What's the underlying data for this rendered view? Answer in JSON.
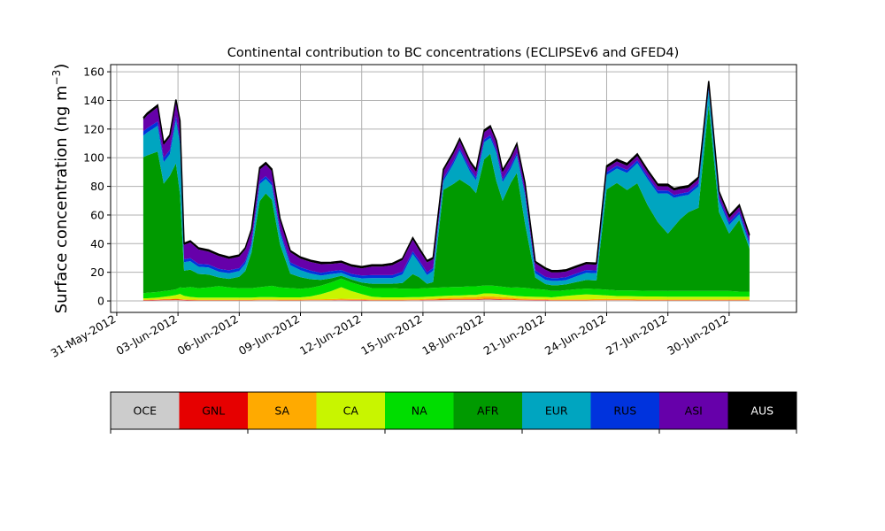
{
  "chart_data": {
    "type": "area",
    "stacked": true,
    "title": "Continental contribution to BC concentrations (ECLIPSEv6 and GFED4)",
    "ylabel": "Surface concentration (ng m",
    "ylabel_unit_exp": "−3",
    "ylabel_close": ")",
    "xlabel": "",
    "ylim": [
      -8,
      165
    ],
    "yticks": [
      0,
      20,
      40,
      60,
      80,
      100,
      120,
      140,
      160
    ],
    "xlim_days": [
      -0.3,
      33.3
    ],
    "x_origin_date": "2012-05-31",
    "xticks": [
      {
        "day": 0,
        "label": "31-May-2012"
      },
      {
        "day": 3,
        "label": "03-Jun-2012"
      },
      {
        "day": 6,
        "label": "06-Jun-2012"
      },
      {
        "day": 9,
        "label": "09-Jun-2012"
      },
      {
        "day": 12,
        "label": "12-Jun-2012"
      },
      {
        "day": 15,
        "label": "15-Jun-2012"
      },
      {
        "day": 18,
        "label": "18-Jun-2012"
      },
      {
        "day": 21,
        "label": "21-Jun-2012"
      },
      {
        "day": 24,
        "label": "24-Jun-2012"
      },
      {
        "day": 27,
        "label": "27-Jun-2012"
      },
      {
        "day": 30,
        "label": "30-Jun-2012"
      }
    ],
    "grid": true,
    "legend_placement": "below",
    "x": [
      1.3,
      1.5,
      2.0,
      2.3,
      2.6,
      2.9,
      3.1,
      3.3,
      3.6,
      4.0,
      4.5,
      5.0,
      5.5,
      6.0,
      6.3,
      6.6,
      7.0,
      7.3,
      7.6,
      8.0,
      8.5,
      9.0,
      9.5,
      10.0,
      10.5,
      11.0,
      11.5,
      12.0,
      12.5,
      13.0,
      13.5,
      14.0,
      14.5,
      14.8,
      15.2,
      15.5,
      16.0,
      16.5,
      16.8,
      17.3,
      17.6,
      18.0,
      18.3,
      18.6,
      18.9,
      19.3,
      19.6,
      20.0,
      20.5,
      21.0,
      21.3,
      21.6,
      22.0,
      22.5,
      23.0,
      23.5,
      24.0,
      24.5,
      25.0,
      25.5,
      26.0,
      26.5,
      27.0,
      27.3,
      27.6,
      28.0,
      28.5,
      29.0,
      29.5,
      30.0,
      30.5,
      31.0
    ],
    "series": [
      {
        "name": "OCE",
        "color": "#cccccc",
        "values": [
          0.3,
          0.3,
          0.4,
          0.5,
          0.5,
          0.6,
          0.5,
          0.4,
          0.3,
          0.3,
          0.3,
          0.3,
          0.3,
          0.3,
          0.3,
          0.3,
          0.4,
          0.4,
          0.4,
          0.3,
          0.3,
          0.3,
          0.4,
          0.4,
          0.4,
          0.5,
          0.4,
          0.4,
          0.3,
          0.3,
          0.3,
          0.3,
          0.4,
          0.4,
          0.5,
          0.5,
          0.6,
          0.7,
          0.7,
          0.8,
          0.8,
          1.0,
          1.0,
          0.9,
          0.8,
          0.7,
          0.6,
          0.5,
          0.4,
          0.4,
          0.3,
          0.3,
          0.3,
          0.3,
          0.3,
          0.4,
          0.4,
          0.4,
          0.4,
          0.3,
          0.3,
          0.3,
          0.3,
          0.3,
          0.3,
          0.3,
          0.3,
          0.3,
          0.3,
          0.3,
          0.3,
          0.3
        ]
      },
      {
        "name": "GNL",
        "color": "#e60000",
        "values": [
          0.3,
          0.3,
          0.3,
          0.4,
          0.4,
          0.4,
          0.4,
          0.3,
          0.3,
          0.2,
          0.2,
          0.2,
          0.2,
          0.2,
          0.2,
          0.2,
          0.2,
          0.2,
          0.2,
          0.2,
          0.2,
          0.2,
          0.2,
          0.2,
          0.2,
          0.3,
          0.3,
          0.3,
          0.2,
          0.2,
          0.2,
          0.2,
          0.2,
          0.2,
          0.3,
          0.3,
          0.4,
          0.4,
          0.4,
          0.4,
          0.4,
          0.5,
          0.5,
          0.5,
          0.4,
          0.4,
          0.3,
          0.3,
          0.3,
          0.3,
          0.2,
          0.2,
          0.2,
          0.2,
          0.2,
          0.2,
          0.2,
          0.2,
          0.2,
          0.2,
          0.2,
          0.2,
          0.2,
          0.2,
          0.2,
          0.2,
          0.2,
          0.2,
          0.2,
          0.2,
          0.2,
          0.2
        ]
      },
      {
        "name": "SA",
        "color": "#ffaa00",
        "values": [
          0.3,
          0.3,
          0.4,
          0.5,
          0.5,
          0.6,
          0.5,
          0.4,
          0.4,
          0.4,
          0.4,
          0.4,
          0.4,
          0.4,
          0.4,
          0.4,
          0.5,
          0.5,
          0.5,
          0.5,
          0.5,
          0.5,
          0.6,
          0.6,
          0.7,
          0.8,
          0.7,
          0.6,
          0.5,
          0.5,
          0.5,
          0.5,
          0.6,
          0.6,
          0.7,
          0.8,
          1.0,
          1.2,
          1.2,
          1.5,
          1.5,
          1.8,
          1.8,
          1.6,
          1.4,
          1.2,
          1.0,
          0.8,
          0.7,
          0.6,
          0.5,
          0.5,
          0.5,
          0.6,
          0.6,
          0.7,
          0.8,
          0.8,
          0.8,
          0.7,
          0.6,
          0.6,
          0.5,
          0.5,
          0.5,
          0.5,
          0.5,
          0.5,
          0.5,
          0.5,
          0.5,
          0.5
        ]
      },
      {
        "name": "CA",
        "color": "#c8f500",
        "values": [
          1.0,
          1.0,
          1.2,
          1.5,
          2.0,
          2.5,
          3.5,
          2.5,
          1.8,
          1.5,
          1.5,
          1.5,
          1.5,
          1.5,
          1.5,
          1.5,
          1.5,
          1.5,
          1.5,
          1.5,
          1.5,
          1.5,
          2.0,
          3.5,
          5.5,
          8.0,
          5.5,
          3.5,
          2.0,
          1.5,
          1.5,
          1.5,
          1.5,
          1.5,
          1.5,
          1.5,
          1.5,
          1.5,
          1.5,
          1.5,
          1.5,
          2.0,
          2.0,
          2.0,
          1.8,
          1.5,
          1.5,
          1.5,
          1.5,
          1.5,
          1.5,
          2.0,
          2.5,
          3.0,
          3.5,
          3.0,
          2.5,
          2.0,
          2.0,
          2.0,
          2.0,
          2.0,
          2.0,
          2.0,
          2.0,
          2.0,
          2.0,
          2.0,
          2.0,
          2.0,
          2.0,
          2.0
        ]
      },
      {
        "name": "NA",
        "color": "#00dd00",
        "values": [
          3.5,
          3.8,
          4.0,
          4.0,
          4.0,
          4.0,
          4.5,
          5.5,
          7.0,
          6.5,
          7.0,
          8.0,
          7.0,
          6.5,
          6.5,
          6.5,
          7.0,
          7.5,
          8.0,
          7.0,
          6.5,
          6.0,
          6.0,
          6.0,
          6.0,
          6.0,
          6.0,
          6.0,
          6.0,
          6.5,
          6.5,
          6.0,
          6.0,
          6.0,
          6.0,
          6.0,
          6.0,
          6.0,
          6.0,
          6.0,
          6.0,
          5.5,
          5.5,
          5.5,
          5.5,
          5.5,
          6.0,
          6.0,
          5.5,
          5.0,
          4.5,
          4.0,
          4.0,
          4.0,
          4.0,
          4.0,
          4.0,
          4.0,
          4.0,
          4.0,
          4.0,
          4.0,
          4.0,
          4.0,
          4.0,
          4.0,
          4.0,
          4.0,
          4.0,
          4.0,
          3.5,
          3.5
        ]
      },
      {
        "name": "AFR",
        "color": "#009a00",
        "values": [
          95,
          96,
          98,
          75,
          80,
          88,
          65,
          12,
          12,
          10,
          9,
          6,
          6,
          8,
          12,
          25,
          60,
          65,
          60,
          30,
          10,
          8,
          6,
          4,
          3,
          2,
          2,
          2,
          3,
          3,
          3,
          4,
          10,
          8,
          3,
          4,
          68,
          72,
          75,
          70,
          65,
          88,
          92,
          73,
          60,
          73,
          80,
          45,
          8,
          4,
          4,
          4,
          4,
          5,
          6,
          6,
          70,
          75,
          70,
          75,
          60,
          48,
          40,
          45,
          50,
          55,
          58,
          130,
          55,
          40,
          50,
          30
        ]
      },
      {
        "name": "EUR",
        "color": "#00a5c0",
        "values": [
          15,
          16,
          18,
          15,
          15,
          30,
          35,
          6,
          6,
          5,
          5,
          4,
          4,
          4,
          5,
          5,
          12,
          10,
          10,
          8,
          6,
          5,
          4,
          3,
          3,
          2,
          2,
          3,
          4,
          4,
          4,
          6,
          14,
          10,
          6,
          8,
          6,
          14,
          20,
          10,
          9,
          12,
          11,
          20,
          13,
          10,
          12,
          20,
          3,
          3,
          3,
          3,
          3,
          4,
          5,
          5,
          10,
          10,
          12,
          14,
          18,
          20,
          28,
          20,
          16,
          12,
          15,
          10,
          8,
          6,
          4,
          3
        ]
      },
      {
        "name": "RUS",
        "color": "#0033dd",
        "values": [
          3,
          3,
          3,
          3,
          3,
          3,
          3,
          2,
          2,
          2,
          2,
          2,
          2,
          2,
          2,
          2,
          2,
          2,
          2,
          2,
          2,
          2,
          2,
          2,
          2,
          2,
          2,
          2,
          2,
          2,
          2,
          2,
          2,
          2,
          2,
          2,
          2,
          2,
          2,
          2,
          2,
          2,
          2,
          2,
          2,
          2,
          2,
          2,
          2,
          2,
          2,
          2,
          2,
          2,
          2,
          2,
          2,
          2,
          2,
          2,
          2,
          2,
          2,
          2,
          2,
          2,
          2,
          2,
          2,
          2,
          2,
          2
        ]
      },
      {
        "name": "ASI",
        "color": "#6600aa",
        "values": [
          8,
          9,
          10,
          9,
          9,
          10,
          12,
          10,
          11,
          10,
          9,
          9,
          8,
          8,
          8,
          8,
          8,
          8,
          8,
          7,
          7,
          6,
          6,
          6,
          5,
          5,
          5,
          5,
          6,
          6,
          7,
          8,
          8,
          7,
          7,
          6,
          5,
          5,
          5,
          4,
          4,
          5,
          5,
          5,
          5,
          5,
          5,
          5,
          5,
          5,
          4,
          4,
          4,
          4,
          4,
          4,
          3,
          3,
          3,
          3,
          3,
          3,
          3,
          3,
          3,
          3,
          3,
          3,
          3,
          3,
          3,
          3
        ]
      },
      {
        "name": "AUS",
        "color": "#000000",
        "values": [
          1.5,
          1.5,
          1.5,
          1.5,
          1.5,
          1.5,
          1.5,
          1.2,
          1.2,
          1.2,
          1.2,
          1.2,
          1.2,
          1.2,
          1.2,
          1.2,
          1.5,
          1.5,
          1.5,
          1.2,
          1.2,
          1.2,
          1.2,
          1.2,
          1.2,
          1.2,
          1.2,
          1.2,
          1.2,
          1.2,
          1.2,
          1.2,
          1.5,
          1.5,
          1.2,
          1.2,
          1.5,
          1.5,
          1.5,
          1.5,
          1.5,
          1.5,
          1.5,
          1.5,
          1.5,
          1.5,
          1.5,
          1.5,
          1.2,
          1.2,
          1.2,
          1.2,
          1.2,
          1.2,
          1.2,
          1.2,
          1.5,
          1.5,
          1.5,
          1.5,
          1.5,
          1.5,
          1.5,
          1.5,
          1.5,
          1.5,
          1.5,
          1.5,
          1.5,
          1.5,
          1.5,
          1.5
        ]
      }
    ],
    "legend_entries": [
      "OCE",
      "GNL",
      "SA",
      "CA",
      "NA",
      "AFR",
      "EUR",
      "RUS",
      "ASI",
      "AUS"
    ],
    "legend_text_colors": [
      "#000000",
      "#000000",
      "#000000",
      "#000000",
      "#000000",
      "#000000",
      "#000000",
      "#000000",
      "#000000",
      "#ffffff"
    ]
  }
}
